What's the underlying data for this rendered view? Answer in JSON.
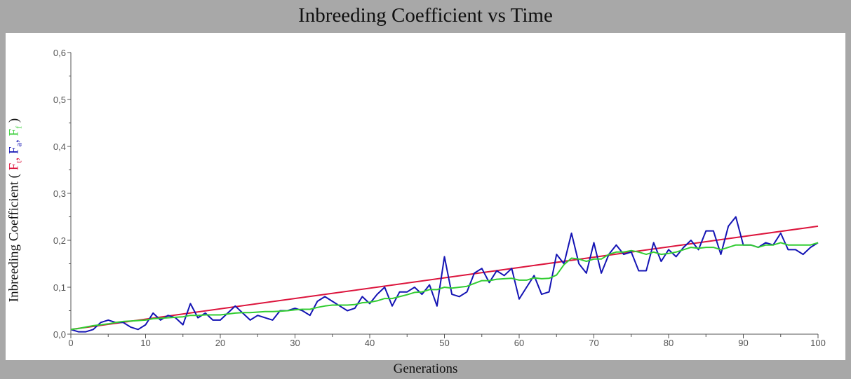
{
  "chart_data": {
    "type": "line",
    "title": "Inbreeding Coefficient vs Time",
    "xlabel": "Generations",
    "ylabel": {
      "prefix": "Inbreeding Coefficient ( ",
      "terms": [
        {
          "base": "F",
          "sub": "t",
          "color": "#dc143c",
          "sep": ", "
        },
        {
          "base": "F",
          "sub": "a",
          "color": "#1414b4",
          "sep": ", "
        },
        {
          "base": "F",
          "sub": "f",
          "color": "#32cd32",
          "sep": " "
        }
      ],
      "suffix": ")"
    },
    "xlim": [
      0,
      100
    ],
    "ylim": [
      0,
      0.6
    ],
    "xticks": [
      0,
      10,
      20,
      30,
      40,
      50,
      60,
      70,
      80,
      90,
      100
    ],
    "xtick_labels": [
      "0",
      "10",
      "20",
      "30",
      "40",
      "50",
      "60",
      "70",
      "80",
      "90",
      "100"
    ],
    "yticks": [
      0,
      0.1,
      0.2,
      0.3,
      0.4,
      0.5,
      0.6
    ],
    "ytick_labels": [
      "0,0",
      "0,1",
      "0,2",
      "0,3",
      "0,4",
      "0,5",
      "0,6"
    ],
    "grid": false,
    "series": [
      {
        "color": "#dc143c",
        "x": [
          0,
          100
        ],
        "y": [
          0.01,
          0.23
        ]
      },
      {
        "color": "#1414b4",
        "x": [
          0,
          1,
          2,
          3,
          4,
          5,
          6,
          7,
          8,
          9,
          10,
          11,
          12,
          13,
          14,
          15,
          16,
          17,
          18,
          19,
          20,
          21,
          22,
          23,
          24,
          25,
          26,
          27,
          28,
          29,
          30,
          31,
          32,
          33,
          34,
          35,
          36,
          37,
          38,
          39,
          40,
          41,
          42,
          43,
          44,
          45,
          46,
          47,
          48,
          49,
          50,
          51,
          52,
          53,
          54,
          55,
          56,
          57,
          58,
          59,
          60,
          61,
          62,
          63,
          64,
          65,
          66,
          67,
          68,
          69,
          70,
          71,
          72,
          73,
          74,
          75,
          76,
          77,
          78,
          79,
          80,
          81,
          82,
          83,
          84,
          85,
          86,
          87,
          88,
          89,
          90,
          91,
          92,
          93,
          94,
          95,
          96,
          97,
          98,
          99,
          100
        ],
        "y": [
          0.01,
          0.005,
          0.005,
          0.01,
          0.025,
          0.03,
          0.025,
          0.025,
          0.015,
          0.01,
          0.02,
          0.045,
          0.03,
          0.04,
          0.035,
          0.02,
          0.065,
          0.035,
          0.045,
          0.03,
          0.03,
          0.045,
          0.06,
          0.045,
          0.03,
          0.04,
          0.035,
          0.03,
          0.05,
          0.05,
          0.055,
          0.05,
          0.04,
          0.07,
          0.08,
          0.07,
          0.06,
          0.05,
          0.055,
          0.08,
          0.065,
          0.085,
          0.1,
          0.06,
          0.09,
          0.09,
          0.1,
          0.085,
          0.105,
          0.06,
          0.165,
          0.085,
          0.08,
          0.09,
          0.13,
          0.14,
          0.11,
          0.135,
          0.125,
          0.14,
          0.075,
          0.1,
          0.125,
          0.085,
          0.09,
          0.17,
          0.15,
          0.215,
          0.15,
          0.13,
          0.195,
          0.13,
          0.17,
          0.19,
          0.17,
          0.175,
          0.135,
          0.135,
          0.195,
          0.155,
          0.18,
          0.165,
          0.185,
          0.2,
          0.18,
          0.22,
          0.22,
          0.17,
          0.23,
          0.25,
          0.19,
          0.19,
          0.185,
          0.195,
          0.19,
          0.215,
          0.18,
          0.18,
          0.17,
          0.185,
          0.195
        ]
      },
      {
        "color": "#32cd32",
        "x": [
          0,
          1,
          2,
          3,
          4,
          5,
          6,
          7,
          8,
          9,
          10,
          11,
          12,
          13,
          14,
          15,
          16,
          17,
          18,
          19,
          20,
          21,
          22,
          23,
          24,
          25,
          26,
          27,
          28,
          29,
          30,
          31,
          32,
          33,
          34,
          35,
          36,
          37,
          38,
          39,
          40,
          41,
          42,
          43,
          44,
          45,
          46,
          47,
          48,
          49,
          50,
          51,
          52,
          53,
          54,
          55,
          56,
          57,
          58,
          59,
          60,
          61,
          62,
          63,
          64,
          65,
          66,
          67,
          68,
          69,
          70,
          71,
          72,
          73,
          74,
          75,
          76,
          77,
          78,
          79,
          80,
          81,
          82,
          83,
          84,
          85,
          86,
          87,
          88,
          89,
          90,
          91,
          92,
          93,
          94,
          95,
          96,
          97,
          98,
          99,
          100
        ],
        "y": [
          0.01,
          0.012,
          0.015,
          0.018,
          0.02,
          0.022,
          0.025,
          0.027,
          0.028,
          0.029,
          0.03,
          0.033,
          0.034,
          0.035,
          0.036,
          0.037,
          0.04,
          0.04,
          0.041,
          0.041,
          0.041,
          0.043,
          0.045,
          0.046,
          0.046,
          0.047,
          0.048,
          0.048,
          0.049,
          0.05,
          0.052,
          0.053,
          0.053,
          0.057,
          0.06,
          0.062,
          0.062,
          0.062,
          0.063,
          0.067,
          0.068,
          0.071,
          0.076,
          0.076,
          0.08,
          0.084,
          0.089,
          0.09,
          0.095,
          0.095,
          0.1,
          0.098,
          0.1,
          0.102,
          0.108,
          0.114,
          0.114,
          0.117,
          0.118,
          0.119,
          0.115,
          0.115,
          0.12,
          0.118,
          0.119,
          0.126,
          0.148,
          0.162,
          0.16,
          0.155,
          0.16,
          0.16,
          0.17,
          0.175,
          0.175,
          0.178,
          0.175,
          0.17,
          0.175,
          0.17,
          0.172,
          0.175,
          0.18,
          0.185,
          0.183,
          0.185,
          0.185,
          0.18,
          0.185,
          0.19,
          0.19,
          0.19,
          0.185,
          0.19,
          0.19,
          0.195,
          0.19,
          0.19,
          0.19,
          0.19,
          0.195
        ]
      }
    ]
  }
}
